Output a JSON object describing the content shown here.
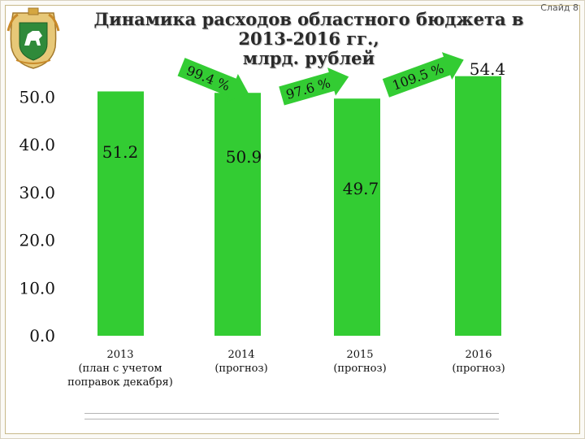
{
  "slide_number": "Слайд 8",
  "title_line1": "Динамика расходов областного бюджета в 2013-2016 гг.,",
  "title_line2": "млрд. рублей",
  "colors": {
    "bar": "#33cc33",
    "arrow": "#33cc33",
    "text": "#111111"
  },
  "chart_data": {
    "type": "bar",
    "title": "Динамика расходов областного бюджета в 2013-2016 гг., млрд. рублей",
    "categories": [
      [
        "2013",
        "(план с учетом",
        "поправок декабря)"
      ],
      [
        "2014",
        "(прогноз)"
      ],
      [
        "2015",
        "(прогноз)"
      ],
      [
        "2016",
        "(прогноз)"
      ]
    ],
    "values": [
      51.2,
      50.9,
      49.7,
      54.4
    ],
    "data_labels": [
      "51.2",
      "50.9",
      "49.7",
      "54.4"
    ],
    "ylim": [
      0,
      55
    ],
    "yticks": [
      "0.0",
      "10.0",
      "20.0",
      "30.0",
      "40.0",
      "50.0"
    ],
    "ytick_values": [
      0,
      10,
      20,
      30,
      40,
      50
    ],
    "growth_labels": [
      "99.4 %",
      "97.6 %",
      "109.5 %"
    ],
    "grid": false,
    "xlabel": "",
    "ylabel": ""
  }
}
